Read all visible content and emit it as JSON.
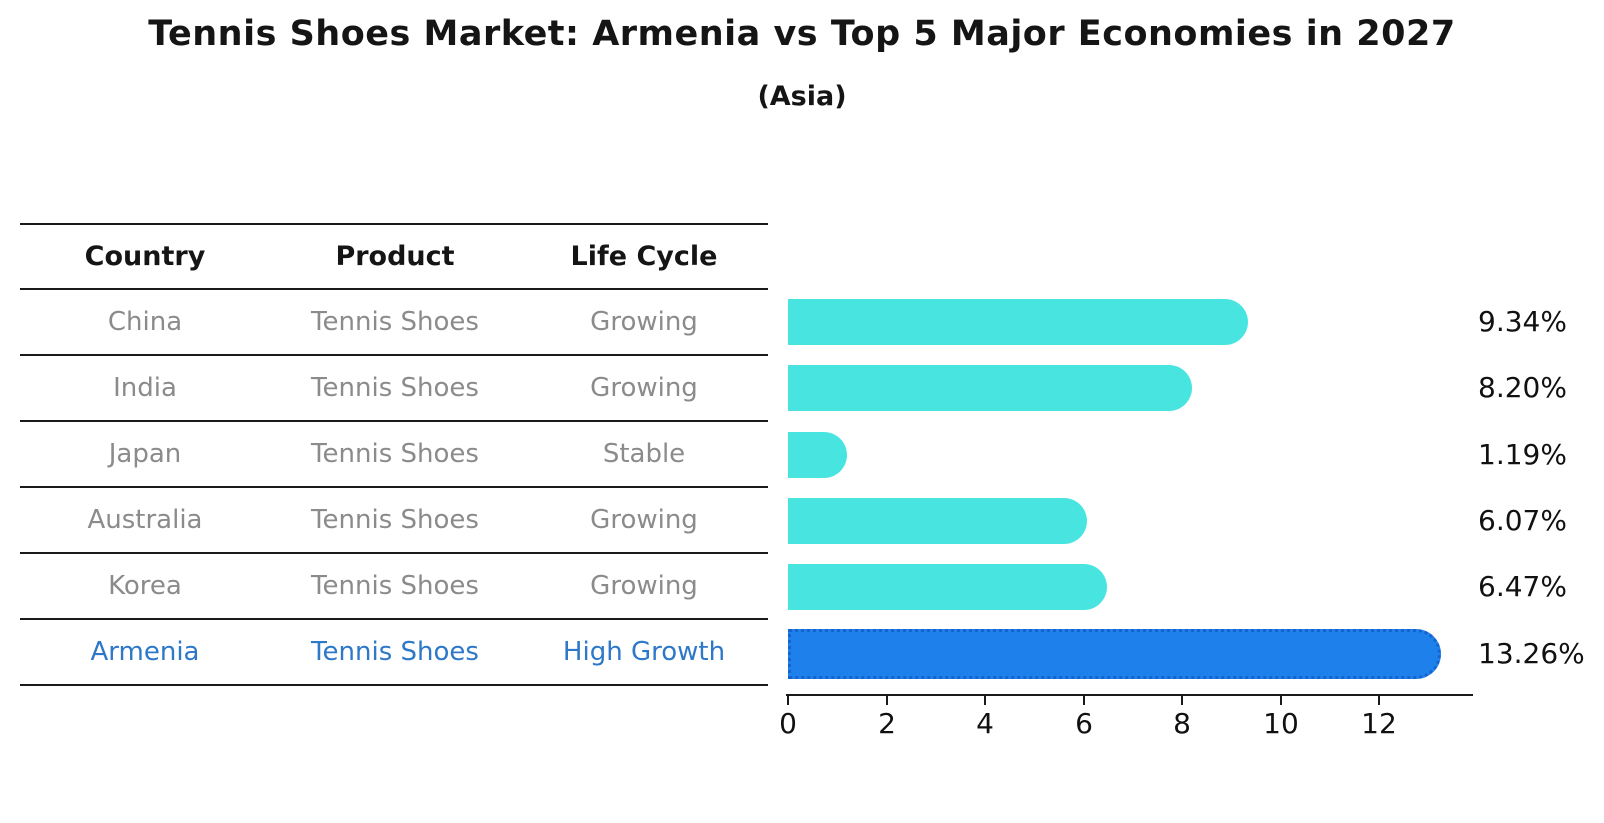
{
  "header": {
    "title": "Tennis Shoes Market: Armenia vs Top 5 Major Economies in 2027",
    "subtitle": "(Asia)"
  },
  "table": {
    "columns": [
      "Country",
      "Product",
      "Life Cycle"
    ],
    "rows": [
      {
        "country": "China",
        "product": "Tennis Shoes",
        "life_cycle": "Growing",
        "highlight": false
      },
      {
        "country": "India",
        "product": "Tennis Shoes",
        "life_cycle": "Growing",
        "highlight": false
      },
      {
        "country": "Japan",
        "product": "Tennis Shoes",
        "life_cycle": "Stable",
        "highlight": false
      },
      {
        "country": "Australia",
        "product": "Tennis Shoes",
        "life_cycle": "Growing",
        "highlight": false
      },
      {
        "country": "Korea",
        "product": "Tennis Shoes",
        "life_cycle": "Growing",
        "highlight": false
      },
      {
        "country": "Armenia",
        "product": "Tennis Shoes",
        "life_cycle": "High Growth",
        "highlight": true
      }
    ]
  },
  "chart_data": {
    "type": "bar",
    "orientation": "horizontal",
    "title": "Tennis Shoes Market: Armenia vs Top 5 Major Economies in 2027",
    "subtitle": "(Asia)",
    "categories": [
      "China",
      "India",
      "Japan",
      "Australia",
      "Korea",
      "Armenia"
    ],
    "values": [
      9.34,
      8.2,
      1.19,
      6.07,
      6.47,
      13.26
    ],
    "value_labels": [
      "9.34%",
      "8.20%",
      "1.19%",
      "6.07%",
      "6.47%",
      "13.26%"
    ],
    "x_ticks": [
      0,
      2,
      4,
      6,
      8,
      10,
      12
    ],
    "xlim": [
      0,
      13.9
    ],
    "grid": false,
    "legend": false,
    "highlight_index": 5
  },
  "colors": {
    "bar_default": "#48e5e0",
    "bar_highlight": "#1e80eb",
    "bar_highlight_border": "#1563cf",
    "highlight_text": "#2d78c8",
    "muted_text": "#8b8b8b",
    "axis": "#1a1a1a"
  }
}
